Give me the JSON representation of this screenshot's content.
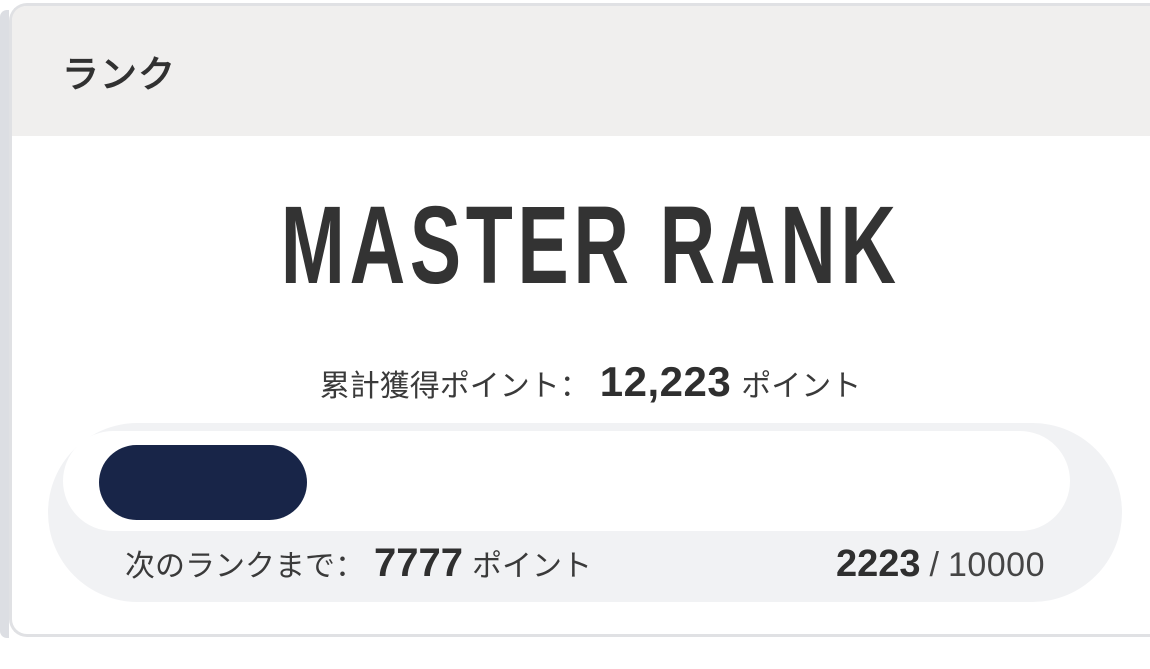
{
  "header": {
    "title": "ランク"
  },
  "rank": {
    "name": "MASTER RANK",
    "total_points_label": "累計獲得ポイント：",
    "total_points_value": "12,223",
    "total_points_unit": "ポイント",
    "next_rank_label": "次のランクまで：",
    "next_rank_value": "7777",
    "next_rank_unit": "ポイント",
    "progress_current": "2223",
    "progress_separator": "/",
    "progress_max": "10000",
    "progress_percent": 22.23
  },
  "colors": {
    "accent_navy": "#182548",
    "header_bg": "#f0efee",
    "panel_bg": "#f1f2f4",
    "track_bg": "#ffffff",
    "text": "#333333",
    "card_border": "#e0e1e4"
  }
}
